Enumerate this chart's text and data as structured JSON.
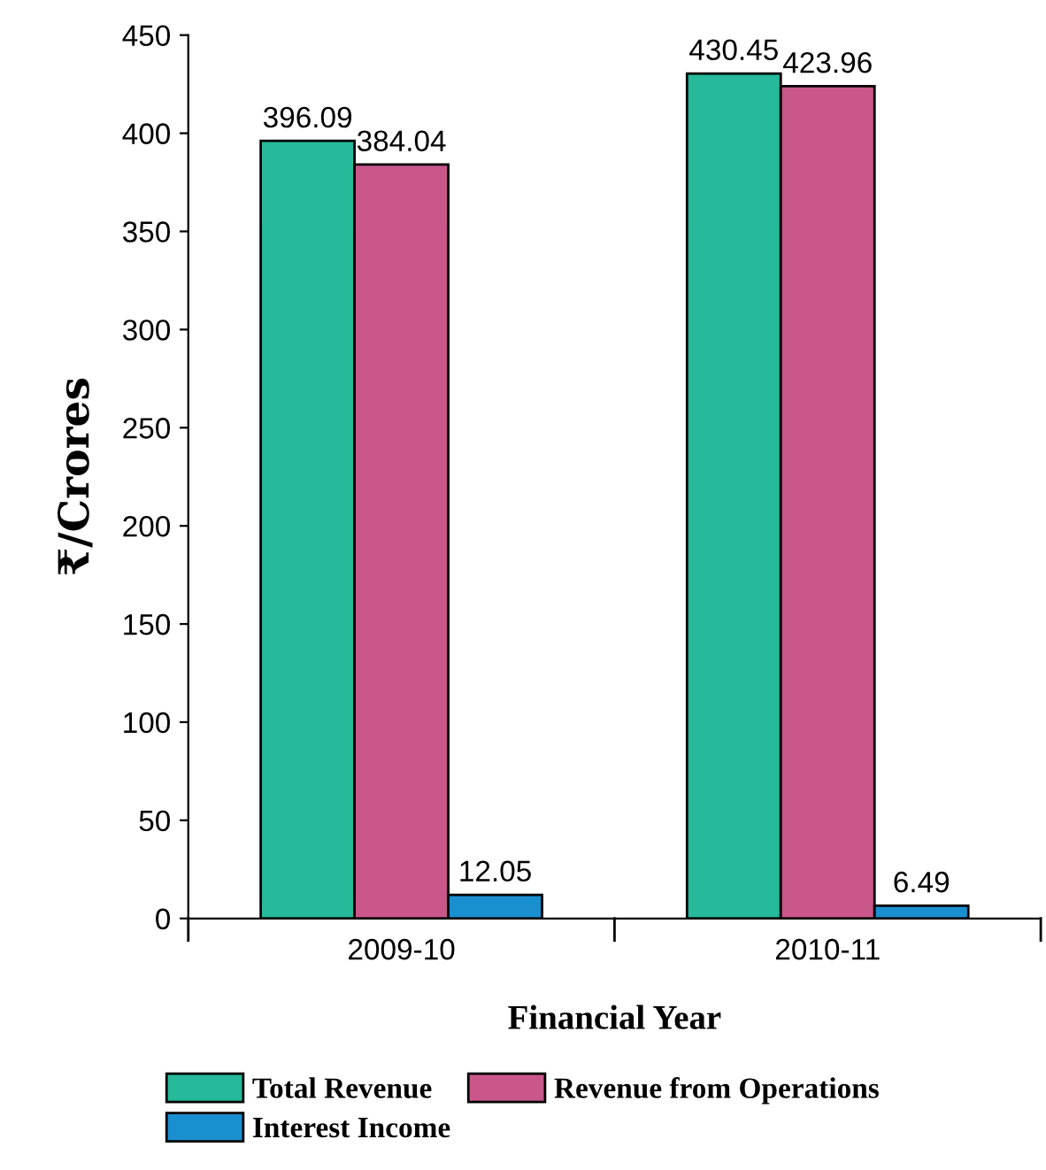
{
  "chart_data": {
    "type": "bar",
    "xlabel": "Financial Year",
    "ylabel": "₹/Crores",
    "categories": [
      "2009-10",
      "2010-11"
    ],
    "series": [
      {
        "name": "Total Revenue",
        "color": "#26b99a",
        "values": [
          396.09,
          430.45
        ]
      },
      {
        "name": "Revenue from Operations",
        "color": "#c9578a",
        "values": [
          384.04,
          423.96
        ]
      },
      {
        "name": "Interest Income",
        "color": "#1a8fd0",
        "values": [
          12.05,
          6.49
        ]
      }
    ],
    "ylim": [
      0,
      450
    ],
    "yticks": [
      0,
      50,
      100,
      150,
      200,
      250,
      300,
      350,
      400,
      450
    ],
    "data_labels": true,
    "grid": false,
    "legend": "bottom"
  }
}
